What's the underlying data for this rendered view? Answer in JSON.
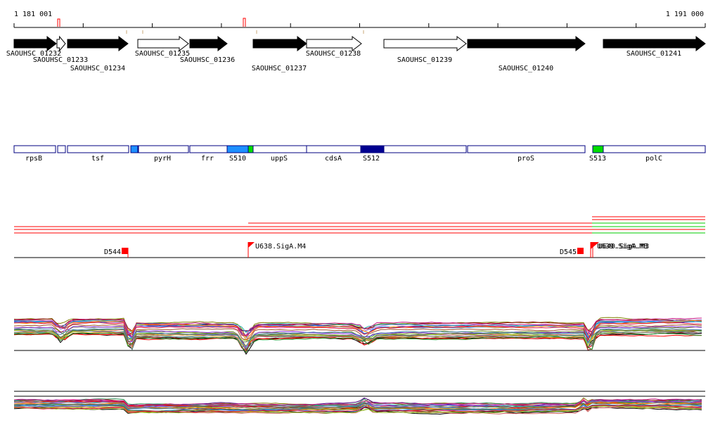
{
  "axis": {
    "start_label": "1 181 001",
    "end_label": "1 191 000"
  },
  "colors": {
    "forward_gene": "#ffffff",
    "reverse_gene": "#000000",
    "segment_border": "#000080",
    "signal_red": "#ff0000",
    "signal_green": "#00cc00",
    "flag": "#ff0000"
  },
  "genes": [
    {
      "label": "SAOUHSC_01232",
      "dir": "reverse",
      "filled": true
    },
    {
      "label": "SAOUHSC_01233",
      "dir": "forward",
      "filled": false
    },
    {
      "label": "SAOUHSC_01234",
      "dir": "reverse",
      "filled": true
    },
    {
      "label": "SAOUHSC_01235",
      "dir": "forward",
      "filled": false
    },
    {
      "label": "SAOUHSC_01236",
      "dir": "reverse",
      "filled": true
    },
    {
      "label": "SAOUHSC_01237",
      "dir": "reverse",
      "filled": true
    },
    {
      "label": "SAOUHSC_01238",
      "dir": "forward",
      "filled": false
    },
    {
      "label": "SAOUHSC_01239",
      "dir": "forward",
      "filled": false
    },
    {
      "label": "SAOUHSC_01240",
      "dir": "reverse",
      "filled": true
    },
    {
      "label": "SAOUHSC_01241",
      "dir": "reverse",
      "filled": true
    }
  ],
  "segments": [
    {
      "label": "rpsB",
      "color": "#ffffff"
    },
    {
      "label": "",
      "color": "#ffffff"
    },
    {
      "label": "tsf",
      "color": "#ffffff"
    },
    {
      "label": "",
      "color": "#1e90ff"
    },
    {
      "label": "pyrH",
      "color": "#ffffff"
    },
    {
      "label": "frr",
      "color": "#ffffff"
    },
    {
      "label": "S510",
      "color": "#1e90ff"
    },
    {
      "label": "",
      "color": "#00dd00"
    },
    {
      "label": "uppS",
      "color": "#ffffff"
    },
    {
      "label": "cdsA",
      "color": "#ffffff"
    },
    {
      "label": "S512",
      "color": "#000090"
    },
    {
      "label": "",
      "color": "#ffffff"
    },
    {
      "label": "proS",
      "color": "#ffffff"
    },
    {
      "label": "S513",
      "color": "#00dd00"
    },
    {
      "label": "polC",
      "color": "#ffffff"
    }
  ],
  "features": [
    {
      "label": "D544",
      "side": "left"
    },
    {
      "label": "U638.SigA.M4",
      "side": "right"
    },
    {
      "label": "D545",
      "side": "left"
    },
    {
      "label": "U639.SigA.M8",
      "side": "right"
    },
    {
      "label": "U640.SigA.M3",
      "side": "right"
    }
  ]
}
